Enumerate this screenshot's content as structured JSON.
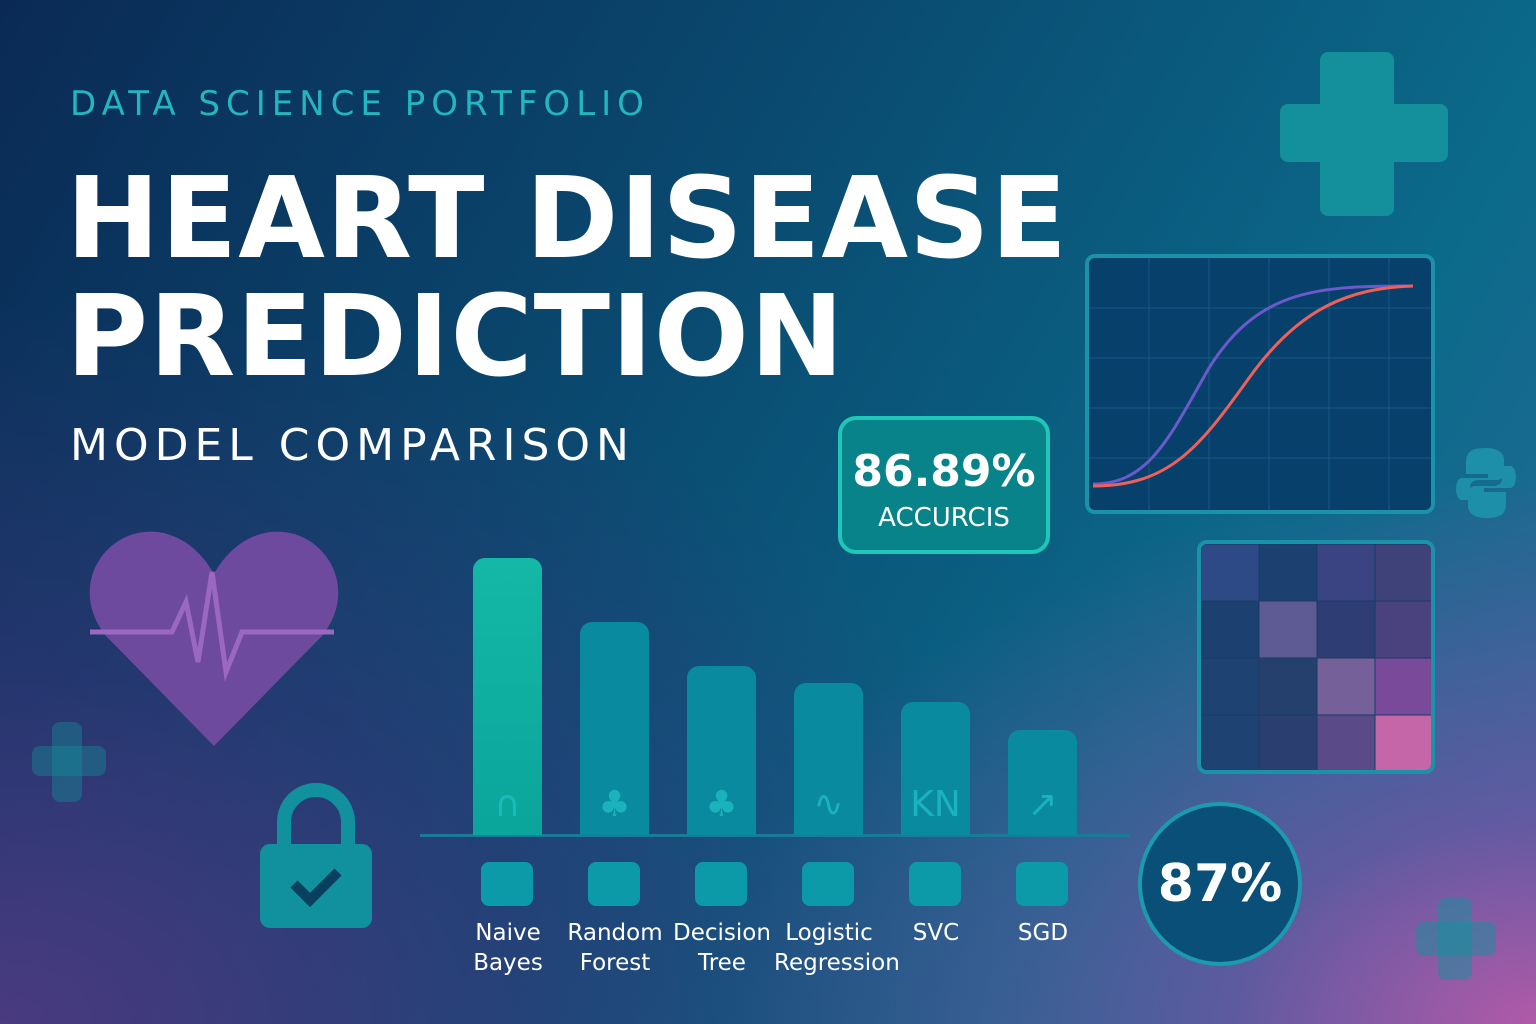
{
  "kicker": "DATA SCIENCE PORTFOLIO",
  "title_line1": "HEART DISEASE",
  "title_line2": "PREDICTION",
  "subtitle": "MODEL COMPARISON",
  "accuracy_card": {
    "value": "86.89%",
    "label": "ACCURCIS"
  },
  "gauge": {
    "value": "87%"
  },
  "models": [
    {
      "label1": "Naive",
      "label2": "Bayes",
      "icon": "bell-curve-icon",
      "level": 1.0
    },
    {
      "label1": "Random",
      "label2": "Forest",
      "icon": "tree-icon",
      "level": 0.77
    },
    {
      "label1": "Decision",
      "label2": "Tree",
      "icon": "tree-icon",
      "level": 0.61
    },
    {
      "label1": "Logistic",
      "label2": "Regression",
      "icon": "spike-curve-icon",
      "level": 0.55
    },
    {
      "label1": "SVC",
      "label2": "",
      "icon": "kn-icon",
      "level": 0.48
    },
    {
      "label1": "SGD",
      "label2": "",
      "icon": "arrow-up-right-icon",
      "level": 0.38
    }
  ],
  "colors": {
    "accent": "#1ec7b8",
    "curve_a": "#6a5acd",
    "curve_b": "#f0605a",
    "heart": "#7a4aa0"
  }
}
